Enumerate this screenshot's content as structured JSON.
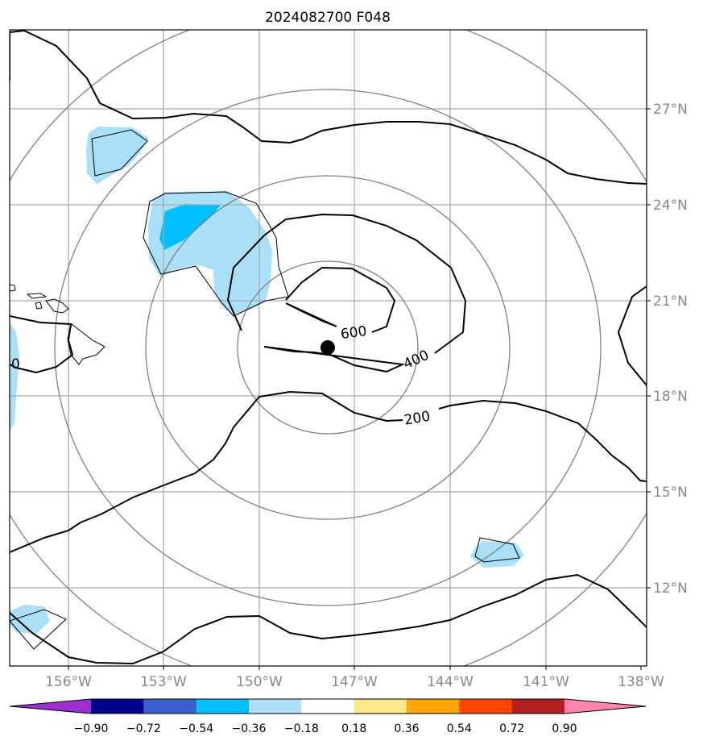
{
  "title": "2024082700 F048",
  "map": {
    "lat_labels": [
      "27°N",
      "24°N",
      "21°N",
      "18°N",
      "15°N",
      "12°N"
    ],
    "lon_labels": [
      "156°W",
      "153°W",
      "150°W",
      "147°W",
      "144°W",
      "141°W",
      "138°W"
    ],
    "contour_labels": [
      "600",
      "400",
      "200",
      "0"
    ],
    "center_marker": "storm-center-dot",
    "colors": {
      "frame": "#000000",
      "grid": "#aaaaaa",
      "range_ring": "#808080",
      "contour": "#000000",
      "shade_light": "#aadff8",
      "shade_mid": "#00bfff"
    }
  },
  "colorbar": {
    "tick_labels": [
      "−0.90",
      "−0.72",
      "−0.54",
      "−0.36",
      "−0.18",
      "0.18",
      "0.36",
      "0.54",
      "0.72",
      "0.90"
    ],
    "colors": [
      "#9b30d0",
      "#00008b",
      "#3a5fcd",
      "#00bfff",
      "#b0e0f8",
      "#ffffff",
      "#ffe88a",
      "#ffa500",
      "#ff4500",
      "#b22222",
      "#ff85b0"
    ]
  }
}
